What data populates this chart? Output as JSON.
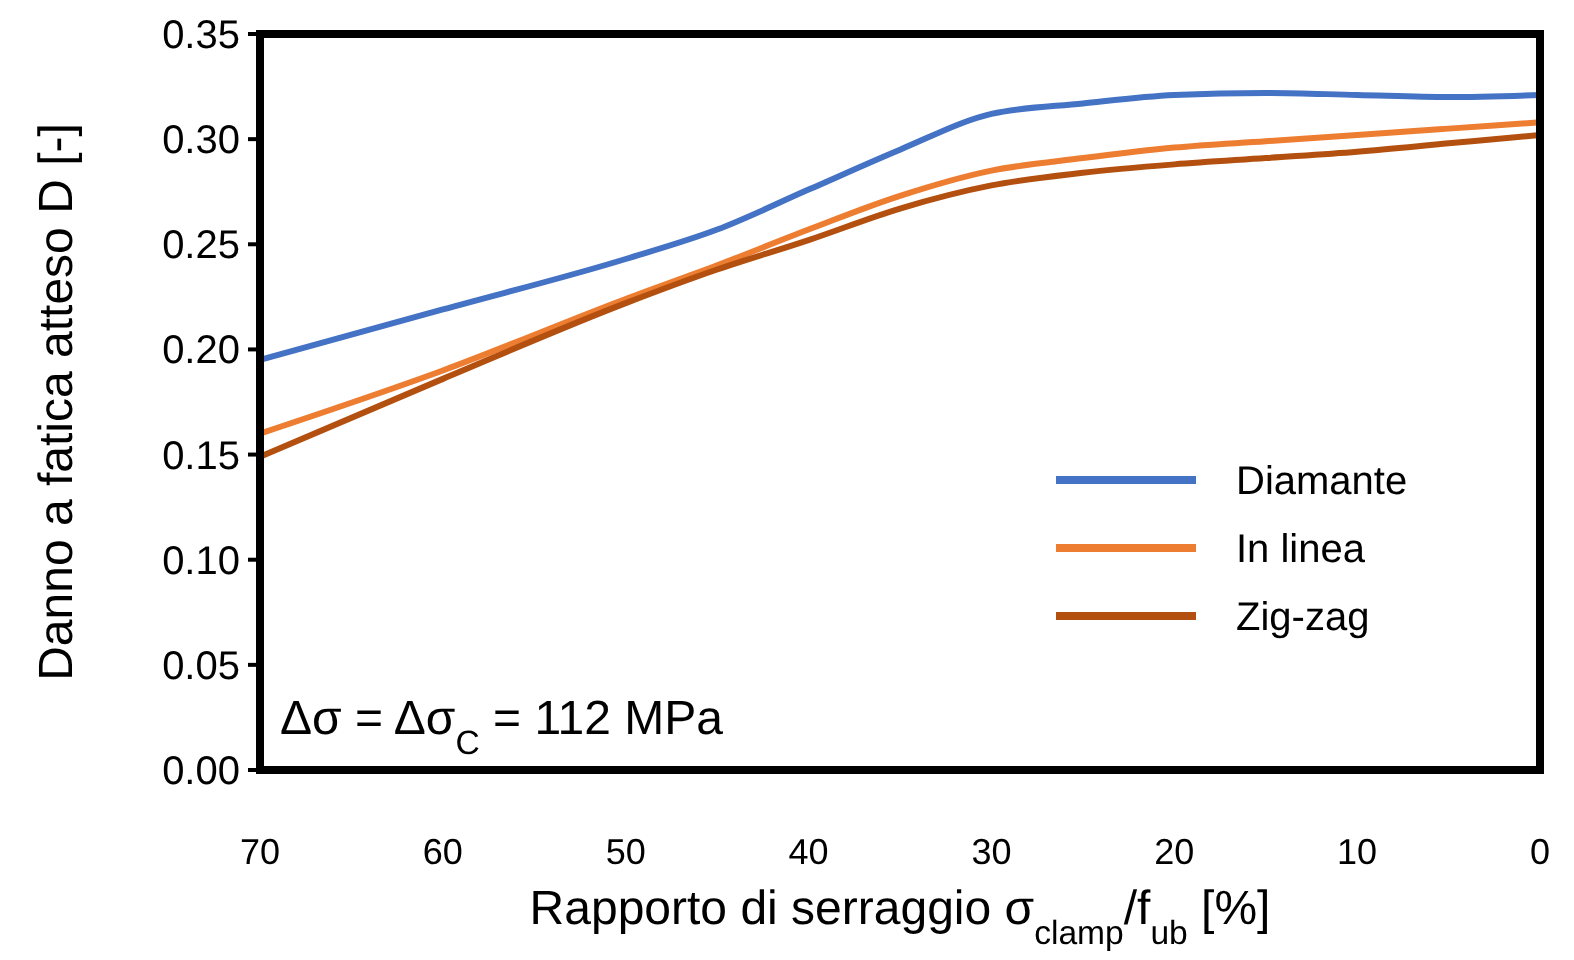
{
  "chart_data": {
    "type": "line",
    "xlabel": "Rapporto di serraggio σ$_{clamp}$/f$_{ub}$ [%]",
    "ylabel": "Danno a fatica atteso D [-]",
    "x": [
      70,
      60,
      50,
      45,
      40,
      35,
      30,
      25,
      20,
      15,
      10,
      5,
      0
    ],
    "series": [
      {
        "name": "Diamante",
        "color": "#4472c4",
        "values": [
          0.195,
          0.219,
          0.243,
          0.257,
          0.276,
          0.295,
          0.312,
          0.317,
          0.321,
          0.322,
          0.321,
          0.32,
          0.321
        ]
      },
      {
        "name": "In linea",
        "color": "#ed7d31",
        "values": [
          0.16,
          0.19,
          0.224,
          0.24,
          0.257,
          0.273,
          0.285,
          0.291,
          0.296,
          0.299,
          0.302,
          0.305,
          0.308
        ]
      },
      {
        "name": "Zig-zag",
        "color": "#b4500f",
        "values": [
          0.149,
          0.186,
          0.222,
          0.238,
          0.252,
          0.267,
          0.278,
          0.284,
          0.288,
          0.291,
          0.294,
          0.298,
          0.302
        ]
      }
    ],
    "xlim": [
      70,
      0
    ],
    "xticks": [
      70,
      60,
      50,
      40,
      30,
      20,
      10,
      0
    ],
    "ylim": [
      0,
      0.35
    ],
    "yticks": [
      {
        "value": 0,
        "label": "0.00"
      },
      {
        "value": 0.05,
        "label": "0.05"
      },
      {
        "value": 0.1,
        "label": "0.10"
      },
      {
        "value": 0.15,
        "label": "0.15"
      },
      {
        "value": 0.2,
        "label": "0.20"
      },
      {
        "value": 0.25,
        "label": "0.25"
      },
      {
        "value": 0.3,
        "label": "0.30"
      },
      {
        "value": 0.35,
        "label": "0.35"
      }
    ],
    "annotations": [
      "Δσ = Δσ$_{C}$ = 112 MPa"
    ],
    "legend": "right",
    "grid": false,
    "marker": "none",
    "line_style": "solid"
  }
}
